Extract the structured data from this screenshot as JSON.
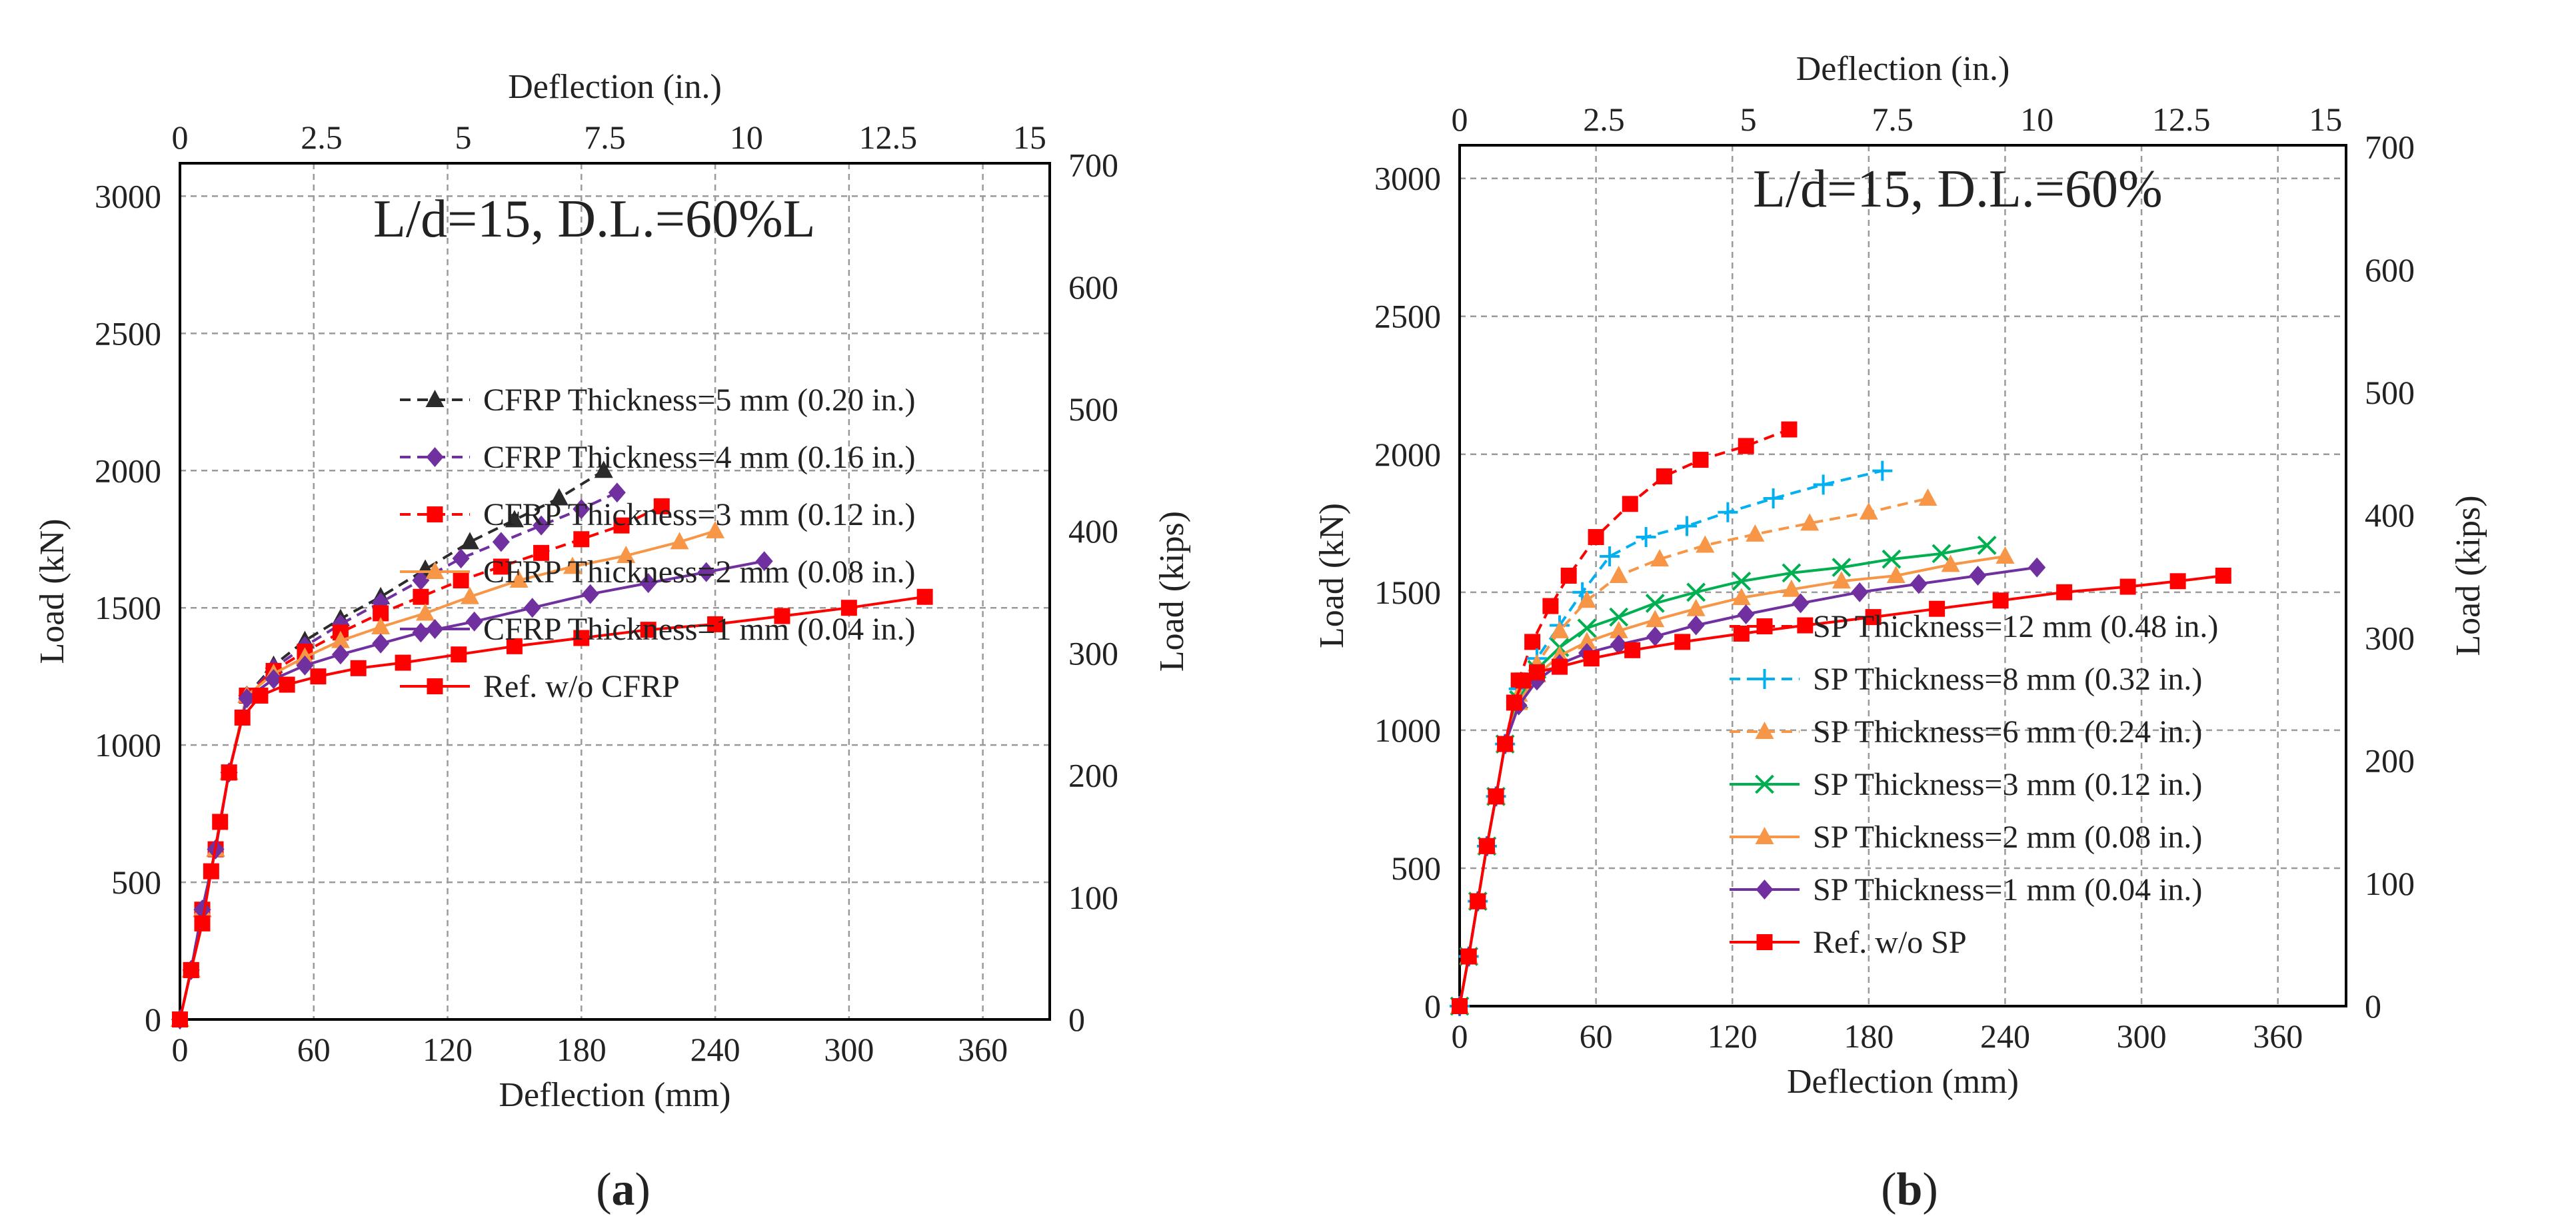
{
  "charts": [
    {
      "type": "line",
      "caption_open": "(",
      "caption_letter": "a",
      "caption_close": ")",
      "annotation": "L/d=15, D.L.=60%L",
      "xlabel_bottom": "Deflection (mm)",
      "xlabel_top": "Deflection (in.)",
      "ylabel_left": "Load (kN)",
      "ylabel_right": "Load (kips)",
      "xlim_mm": [
        0,
        390
      ],
      "ylim_kN": [
        0,
        3120
      ],
      "xticks_mm": [
        "0",
        "60",
        "120",
        "180",
        "240",
        "300",
        "360"
      ],
      "yticks_kN": [
        "0",
        "500",
        "1000",
        "1500",
        "2000",
        "2500",
        "3000"
      ],
      "xticks_in": [
        "0",
        "2.5",
        "5",
        "7.5",
        "10",
        "12.5",
        "15"
      ],
      "yticks_kips": [
        "0",
        "100",
        "200",
        "300",
        "400",
        "500",
        "600",
        "700"
      ],
      "series": [
        {
          "name": "CFRP Thickness=5 mm (0.20 in.)",
          "color": "#2b2b2b",
          "dash": "dash",
          "marker": "triangle",
          "x": [
            0,
            5,
            10,
            16,
            22,
            30,
            42,
            56,
            72,
            90,
            110,
            130,
            150,
            170,
            190
          ],
          "y": [
            0,
            180,
            400,
            620,
            900,
            1180,
            1290,
            1380,
            1460,
            1540,
            1640,
            1740,
            1820,
            1900,
            2000
          ]
        },
        {
          "name": "CFRP Thickness=4 mm (0.16 in.)",
          "color": "#7030a0",
          "dash": "dash",
          "marker": "diamond",
          "x": [
            0,
            5,
            10,
            16,
            22,
            30,
            42,
            56,
            72,
            90,
            108,
            126,
            144,
            162,
            180,
            196
          ],
          "y": [
            0,
            180,
            400,
            620,
            900,
            1180,
            1280,
            1360,
            1440,
            1520,
            1600,
            1680,
            1740,
            1800,
            1860,
            1920
          ]
        },
        {
          "name": "CFRP Thickness=3 mm (0.12 in.)",
          "color": "#ff0000",
          "dash": "dash",
          "marker": "square",
          "x": [
            0,
            5,
            10,
            16,
            22,
            30,
            42,
            56,
            72,
            90,
            108,
            126,
            144,
            162,
            180,
            198,
            216
          ],
          "y": [
            0,
            180,
            400,
            620,
            900,
            1180,
            1270,
            1340,
            1410,
            1480,
            1540,
            1600,
            1650,
            1700,
            1750,
            1800,
            1870
          ]
        },
        {
          "name": "CFRP Thickness=2 mm (0.08 in.)",
          "color": "#f79646",
          "dash": "solid",
          "marker": "triangle",
          "x": [
            0,
            5,
            10,
            16,
            22,
            30,
            42,
            56,
            72,
            90,
            110,
            130,
            152,
            176,
            200,
            224,
            240
          ],
          "y": [
            0,
            180,
            400,
            620,
            900,
            1180,
            1260,
            1320,
            1380,
            1430,
            1480,
            1540,
            1600,
            1650,
            1690,
            1740,
            1780
          ]
        },
        {
          "name": "CFRP Thickness=1 mm (0.04 in.)",
          "color": "#7030a0",
          "dash": "solid",
          "marker": "diamond",
          "x": [
            0,
            5,
            10,
            16,
            22,
            30,
            42,
            56,
            72,
            90,
            108,
            132,
            158,
            184,
            210,
            236,
            262
          ],
          "y": [
            0,
            180,
            400,
            620,
            900,
            1170,
            1240,
            1290,
            1330,
            1370,
            1410,
            1450,
            1500,
            1550,
            1590,
            1630,
            1670
          ]
        },
        {
          "name": "Ref. w/o CFRP",
          "color": "#ff0000",
          "dash": "solid",
          "marker": "square",
          "x": [
            0,
            5,
            10,
            14,
            18,
            22,
            28,
            36,
            48,
            62,
            80,
            100,
            125,
            150,
            180,
            210,
            240,
            270,
            300,
            334
          ],
          "y": [
            0,
            180,
            350,
            540,
            720,
            900,
            1100,
            1180,
            1220,
            1250,
            1280,
            1300,
            1330,
            1360,
            1390,
            1420,
            1440,
            1470,
            1500,
            1540
          ]
        }
      ]
    },
    {
      "type": "line",
      "caption_open": "(",
      "caption_letter": "b",
      "caption_close": ")",
      "annotation": "L/d=15, D.L.=60%",
      "xlabel_bottom": "Deflection (mm)",
      "xlabel_top": "Deflection (in.)",
      "ylabel_left": "Load (kN)",
      "ylabel_right": "Load (kips)",
      "xlim_mm": [
        0,
        390
      ],
      "ylim_kN": [
        0,
        3120
      ],
      "xticks_mm": [
        "0",
        "60",
        "120",
        "180",
        "240",
        "300",
        "360"
      ],
      "yticks_kN": [
        "0",
        "500",
        "1000",
        "1500",
        "2000",
        "2500",
        "3000"
      ],
      "xticks_in": [
        "0",
        "2.5",
        "5",
        "7.5",
        "10",
        "12.5",
        "15"
      ],
      "yticks_kips": [
        "0",
        "100",
        "200",
        "300",
        "400",
        "500",
        "600",
        "700"
      ],
      "series": [
        {
          "name": "SP Thickness=12 mm (0.48 in.)",
          "color": "#ff0000",
          "dash": "dash",
          "marker": "square",
          "x": [
            0,
            4,
            8,
            12,
            16,
            20,
            26,
            32,
            40,
            48,
            60,
            75,
            90,
            106,
            126,
            145
          ],
          "y": [
            0,
            180,
            380,
            580,
            760,
            950,
            1180,
            1320,
            1450,
            1560,
            1700,
            1820,
            1920,
            1980,
            2030,
            2090
          ]
        },
        {
          "name": "SP Thickness=8 mm (0.32 in.)",
          "color": "#00b0f0",
          "dash": "dash",
          "marker": "plus",
          "x": [
            0,
            4,
            8,
            12,
            16,
            20,
            26,
            34,
            44,
            54,
            66,
            82,
            100,
            118,
            138,
            160,
            186
          ],
          "y": [
            0,
            180,
            380,
            580,
            760,
            950,
            1150,
            1260,
            1380,
            1500,
            1630,
            1700,
            1740,
            1790,
            1840,
            1890,
            1940
          ]
        },
        {
          "name": "SP Thickness=6 mm (0.24 in.)",
          "color": "#f79646",
          "dash": "dash",
          "marker": "triangle",
          "x": [
            0,
            4,
            8,
            12,
            16,
            20,
            26,
            34,
            44,
            56,
            70,
            88,
            108,
            130,
            154,
            180,
            206
          ],
          "y": [
            0,
            180,
            380,
            580,
            760,
            950,
            1130,
            1240,
            1360,
            1470,
            1560,
            1620,
            1670,
            1710,
            1750,
            1790,
            1840
          ]
        },
        {
          "name": "SP Thickness=3 mm (0.12 in.)",
          "color": "#00b050",
          "dash": "solid",
          "marker": "x",
          "x": [
            0,
            4,
            8,
            12,
            16,
            20,
            26,
            34,
            44,
            56,
            70,
            86,
            104,
            124,
            146,
            168,
            190,
            212,
            232
          ],
          "y": [
            0,
            180,
            380,
            580,
            760,
            950,
            1110,
            1220,
            1300,
            1370,
            1410,
            1460,
            1500,
            1540,
            1570,
            1590,
            1620,
            1640,
            1670
          ]
        },
        {
          "name": "SP Thickness=2 mm (0.08 in.)",
          "color": "#f79646",
          "dash": "solid",
          "marker": "triangle",
          "x": [
            0,
            4,
            8,
            12,
            16,
            20,
            26,
            34,
            44,
            56,
            70,
            86,
            104,
            124,
            146,
            168,
            192,
            216,
            240
          ],
          "y": [
            0,
            180,
            380,
            580,
            760,
            950,
            1100,
            1200,
            1270,
            1320,
            1360,
            1400,
            1440,
            1480,
            1510,
            1540,
            1560,
            1600,
            1630
          ]
        },
        {
          "name": "SP Thickness=1 mm (0.04 in.)",
          "color": "#7030a0",
          "dash": "solid",
          "marker": "diamond",
          "x": [
            0,
            4,
            8,
            12,
            16,
            20,
            26,
            34,
            44,
            56,
            70,
            86,
            104,
            126,
            150,
            176,
            202,
            228,
            254
          ],
          "y": [
            0,
            180,
            380,
            580,
            760,
            950,
            1090,
            1180,
            1240,
            1280,
            1310,
            1340,
            1380,
            1420,
            1460,
            1500,
            1530,
            1560,
            1590
          ]
        },
        {
          "name": "Ref. w/o SP",
          "color": "#ff0000",
          "dash": "solid",
          "marker": "square",
          "x": [
            0,
            4,
            8,
            12,
            16,
            20,
            24,
            28,
            34,
            44,
            58,
            76,
            98,
            124,
            152,
            182,
            210,
            238,
            266,
            294,
            316,
            336
          ],
          "y": [
            0,
            180,
            380,
            580,
            760,
            950,
            1100,
            1180,
            1210,
            1230,
            1260,
            1290,
            1320,
            1350,
            1380,
            1410,
            1440,
            1470,
            1500,
            1520,
            1540,
            1560
          ]
        }
      ]
    }
  ]
}
